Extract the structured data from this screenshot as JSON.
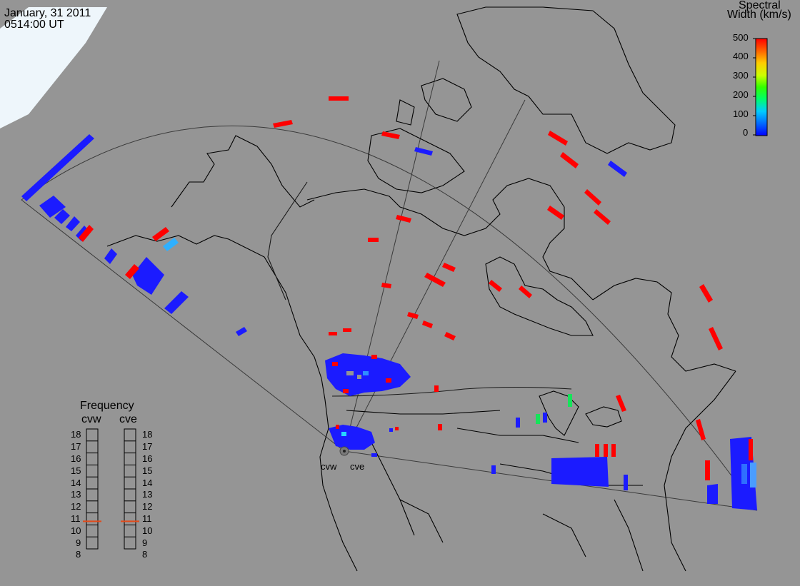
{
  "header": {
    "date": "January, 31 2011",
    "time": "0514:00 UT"
  },
  "colorbar": {
    "title_line1": "Spectral",
    "title_line2": "Width (km/s)",
    "ticks": [
      "500",
      "400",
      "300",
      "200",
      "100",
      "0"
    ]
  },
  "frequency_panel": {
    "title": "Frequency",
    "radars": [
      "cvw",
      "cve"
    ],
    "levels": [
      "18",
      "17",
      "16",
      "15",
      "14",
      "13",
      "12",
      "11",
      "10",
      "9",
      "8"
    ],
    "cvw_value": 10.8,
    "cve_value": 10.8,
    "marker_color": "#e24a1a"
  },
  "radar_labels": [
    "cvw",
    "cve"
  ],
  "colors": {
    "background": "#959595",
    "land": "#959595",
    "snow_ice": "#eef6fb",
    "coast": "#000000",
    "fov": "#3a3a3a",
    "echo_red": "#ff0000",
    "echo_blue": "#1b1bff",
    "echo_lightblue": "#2f8eff",
    "echo_cyan": "#27d6ff",
    "echo_green": "#16e35a"
  }
}
